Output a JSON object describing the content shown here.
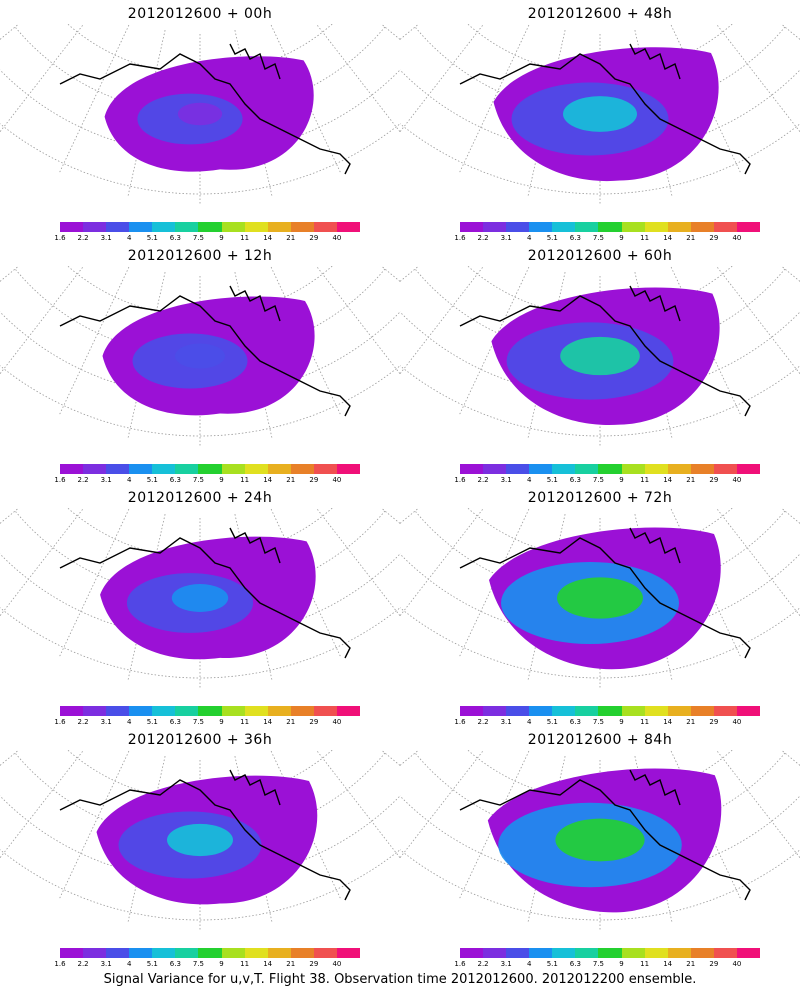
{
  "panels": [
    {
      "title": "2012012600  + 00h",
      "level": 0.18
    },
    {
      "title": "2012012600  + 48h",
      "level": 0.55
    },
    {
      "title": "2012012600  + 12h",
      "level": 0.25
    },
    {
      "title": "2012012600  + 60h",
      "level": 0.62
    },
    {
      "title": "2012012600  + 24h",
      "level": 0.33
    },
    {
      "title": "2012012600  + 72h",
      "level": 0.7
    },
    {
      "title": "2012012600  + 36h",
      "level": 0.45
    },
    {
      "title": "2012012600  + 84h",
      "level": 0.74
    }
  ],
  "colorbar": {
    "labels": [
      "1.6",
      "2.2",
      "3.1",
      "4",
      "5.1",
      "6.3",
      "7.5",
      "9",
      "11",
      "14",
      "21",
      "29",
      "40"
    ],
    "colors": [
      "#9b11d6",
      "#7c2ee0",
      "#4a4ee8",
      "#1a90f0",
      "#16c0d8",
      "#18d0a0",
      "#24d030",
      "#a8e020",
      "#e0e020",
      "#e8b020",
      "#e88028",
      "#f05050",
      "#f01078"
    ]
  },
  "caption": "Signal Variance for u,v,T. Flight 38. Observation time 2012012600. 2012012200 ensemble."
}
